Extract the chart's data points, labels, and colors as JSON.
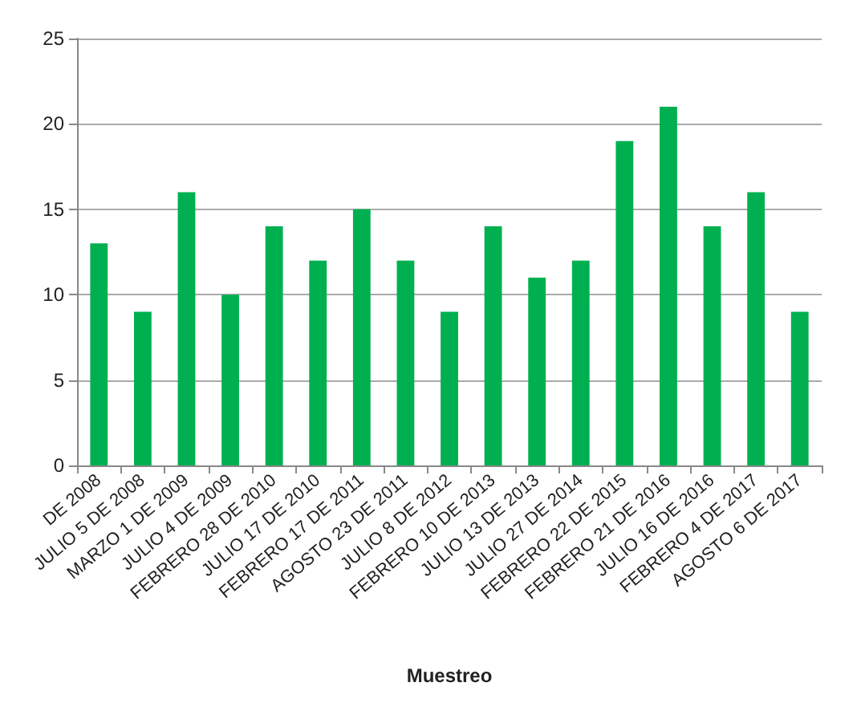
{
  "chart_data": {
    "type": "bar",
    "xlabel": "Muestreo",
    "categories": [
      "DE 2008",
      "JULIO 5 DE 2008",
      "MARZO 1 DE 2009",
      "JULIO 4 DE 2009",
      "FEBRERO 28 DE 2010",
      "JULIO 17 DE 2010",
      "FEBRERO 17 DE 2011",
      "AGOSTO 23 DE 2011",
      "JULIO 8 DE 2012",
      "FEBRERO 10 DE 2013",
      "JULIO 13 DE 2013",
      "JULIO 27 DE 2014",
      "FEBRERO 22 DE 2015",
      "FEBRERO 21 DE 2016",
      "JULIO 16 DE 2016",
      "FEBRERO 4 DE 2017",
      "AGOSTO 6 DE 2017"
    ],
    "values": [
      13,
      9,
      16,
      10,
      14,
      12,
      15,
      12,
      9,
      14,
      11,
      12,
      19,
      21,
      14,
      16,
      9
    ],
    "color": "#00b050",
    "ylim": [
      0,
      25
    ],
    "yticks": [
      0,
      5,
      10,
      15,
      20,
      25
    ],
    "grid": "y"
  }
}
